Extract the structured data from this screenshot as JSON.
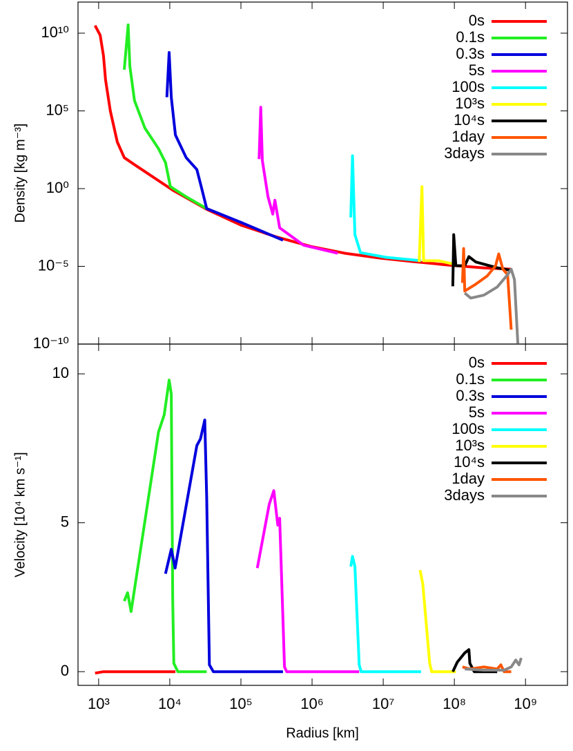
{
  "chart_data": [
    {
      "type": "line",
      "y_label": "Density [kg m⁻³]",
      "log_x": true,
      "log_y": true,
      "legend": "upper right",
      "xlim": [
        513,
        3890000000.0
      ],
      "ylim": [
        1e-10,
        1000000000000.0
      ],
      "yticks": [
        {
          "value": 10000000000.0,
          "label": "10¹⁰"
        },
        {
          "value": 100000.0,
          "label": "10⁵"
        },
        {
          "value": 1,
          "label": "10⁰"
        },
        {
          "value": 1e-05,
          "label": "10⁻⁵"
        },
        {
          "value": 1e-10,
          "label": "10⁻¹⁰"
        }
      ],
      "series": [
        {
          "name": "0s",
          "color": "#ff0000",
          "x": [
            890,
            1050,
            1170,
            1250,
            1460,
            1830,
            2290,
            3190,
            11000,
            33000,
            100000,
            310000,
            960000,
            2900000,
            8900000,
            27000000,
            84000000,
            260000000,
            630000000
          ],
          "values": [
            31000000000.0,
            7400000000.0,
            350000000.0,
            9800000.0,
            100000.0,
            1000,
            98,
            35,
            0.8,
            0.047,
            0.0045,
            0.0008,
            0.00019,
            6.9e-05,
            3.4e-05,
            2e-05,
            1.2e-05,
            8e-06,
            6.6e-06
          ]
        },
        {
          "name": "0.1s",
          "color": "#22ee22",
          "x": [
            2290,
            2600,
            2750,
            3190,
            4470,
            6950,
            8700,
            10200,
            17000,
            33000
          ],
          "values": [
            45000000.0,
            34000000000.0,
            76000000.0,
            460000.0,
            7800,
            370,
            48,
            1.35,
            0.3,
            0.052
          ]
        },
        {
          "name": "0.3s",
          "color": "#0000dd",
          "x": [
            9100,
            9800,
            10500,
            12000,
            17000,
            24000,
            28000,
            33000,
            100000,
            390000
          ],
          "values": [
            760000.0,
            570000000.0,
            760000.0,
            2800,
            98,
            17,
            1.1,
            0.052,
            0.0068,
            0.00048
          ]
        },
        {
          "name": "5s",
          "color": "#ff00ff",
          "x": [
            180000,
            190000,
            200000,
            240000,
            280000,
            300000,
            350000,
            760000,
            2300000
          ],
          "values": [
            79,
            170000.0,
            65,
            0.3,
            0.023,
            0.18,
            0.003,
            0.00023,
            6.9e-05
          ]
        },
        {
          "name": "100s",
          "color": "#00ffff",
          "x": [
            3500000,
            3700000,
            4000000,
            4800000,
            11000000,
            34000000
          ],
          "values": [
            0.014,
            130,
            0.0011,
            7.6e-05,
            3.8e-05,
            2.3e-05
          ]
        },
        {
          "name": "10³s",
          "color": "#ffff00",
          "x": [
            32000000,
            35000000,
            37000000,
            60000000,
            105000000
          ],
          "values": [
            1.9e-05,
            1.35,
            2.3e-05,
            2.3e-05,
            1.3e-05
          ]
        },
        {
          "name": "10⁴s",
          "color": "#000000",
          "x": [
            95000000,
            98000000,
            105000000,
            140000000,
            160000000,
            200000000,
            400000000,
            630000000
          ],
          "values": [
            5.2e-07,
            0.0011,
            1.1e-05,
            1.1e-05,
            4.2e-05,
            1.9e-05,
            8.1e-06,
            5.4e-06
          ]
        },
        {
          "name": "1day",
          "color": "#ff5500",
          "x": [
            130000000,
            135000000,
            140000000,
            200000000,
            290000000,
            380000000,
            420000000,
            480000000,
            560000000,
            630000000
          ],
          "values": [
            8.7e-07,
            0.00014,
            2.6e-07,
            7.1e-07,
            2.4e-06,
            1.1e-05,
            6.3e-05,
            6.6e-06,
            2.9e-06,
            8.5e-10
          ]
        },
        {
          "name": "3days",
          "color": "#888888",
          "x": [
            140000000,
            170000000,
            260000000,
            400000000,
            560000000,
            630000000,
            700000000,
            780000000
          ],
          "values": [
            1.9e-07,
            9.1e-08,
            1.4e-07,
            4.7e-07,
            2.9e-06,
            6.6e-06,
            1.4e-06,
            1.1e-10
          ]
        }
      ]
    },
    {
      "type": "line",
      "x_label": "Radius [km]",
      "y_label": "Velocity [10⁴ km s⁻¹]",
      "log_x": true,
      "log_y": false,
      "legend": "upper right",
      "xlim": [
        513,
        3890000000.0
      ],
      "ylim": [
        -0.46,
        11
      ],
      "xticks": [
        {
          "value": 1000,
          "label": "10³"
        },
        {
          "value": 10000,
          "label": "10⁴"
        },
        {
          "value": 100000,
          "label": "10⁵"
        },
        {
          "value": 1000000,
          "label": "10⁶"
        },
        {
          "value": 10000000,
          "label": "10⁷"
        },
        {
          "value": 100000000,
          "label": "10⁸"
        },
        {
          "value": 1000000000,
          "label": "10⁹"
        }
      ],
      "yticks": [
        0,
        5,
        10
      ],
      "series": [
        {
          "name": "0s",
          "color": "#ff0000",
          "x": [
            890,
            1170,
            12000
          ],
          "values": [
            -0.05,
            0,
            0
          ]
        },
        {
          "name": "0.1s",
          "color": "#22ee22",
          "x": [
            2290,
            2550,
            2860,
            6950,
            8350,
            9800,
            10500,
            11000,
            11400,
            13000,
            33000
          ],
          "values": [
            2.37,
            2.65,
            2.02,
            8.05,
            8.63,
            9.79,
            9.33,
            2.37,
            0.28,
            0,
            0
          ]
        },
        {
          "name": "0.3s",
          "color": "#0000dd",
          "x": [
            8700,
            10500,
            11900,
            24000,
            27000,
            31000,
            33000,
            36000,
            41000,
            390000
          ],
          "values": [
            3.29,
            4.11,
            3.48,
            7.59,
            7.82,
            8.45,
            5.85,
            0.23,
            0,
            0
          ]
        },
        {
          "name": "5s",
          "color": "#ff00ff",
          "x": [
            170000,
            250000,
            290000,
            330000,
            350000,
            410000,
            440000,
            4600000
          ],
          "values": [
            3.48,
            5.62,
            6.08,
            4.92,
            5.15,
            0.16,
            0,
            0
          ]
        },
        {
          "name": "100s",
          "color": "#00ffff",
          "x": [
            3500000,
            3700000,
            4000000,
            4600000,
            4900000,
            34000000
          ],
          "values": [
            3.53,
            3.87,
            3.53,
            0.23,
            0,
            0
          ]
        },
        {
          "name": "10³s",
          "color": "#ffff00",
          "x": [
            33000000,
            36000000,
            45000000,
            48000000,
            105000000
          ],
          "values": [
            3.41,
            2.95,
            0.28,
            0,
            0
          ]
        },
        {
          "name": "10⁴s",
          "color": "#000000",
          "x": [
            95000000,
            110000000,
            140000000,
            160000000,
            165000000,
            190000000,
            400000000
          ],
          "values": [
            0,
            0.32,
            0.63,
            0.74,
            0.28,
            0,
            0
          ]
        },
        {
          "name": "1day",
          "color": "#ff5500",
          "x": [
            130000000,
            165000000,
            260000000,
            400000000,
            450000000,
            500000000,
            630000000
          ],
          "values": [
            0.16,
            0.09,
            0.16,
            0.09,
            0.23,
            0,
            0
          ]
        },
        {
          "name": "3days",
          "color": "#888888",
          "x": [
            140000000,
            260000000,
            500000000,
            630000000,
            730000000,
            810000000,
            870000000
          ],
          "values": [
            0.09,
            0.05,
            0.05,
            0.16,
            0.39,
            0.23,
            0.46
          ]
        }
      ]
    }
  ]
}
